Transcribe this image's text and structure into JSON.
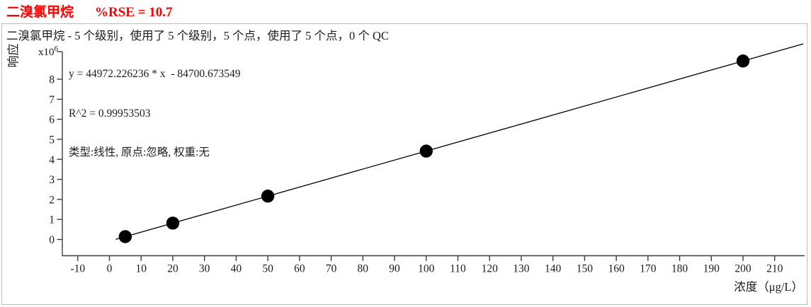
{
  "header": {
    "compound": "二溴氯甲烷",
    "rse": "%RSE = 10.7",
    "color": "#ff0000"
  },
  "subtitle": "二溴氯甲烷 - 5 个级别，使用了 5 个级别，5 个点，使用了 5 个点，0 个 QC",
  "annotation": {
    "equation": "y = 44972.226236 * x  - 84700.673549",
    "r2": "R^2 = 0.99953503",
    "fit_info": "类型:线性, 原点:忽略, 权重:无"
  },
  "chart_data": {
    "type": "scatter",
    "title": "二溴氯甲烷  %RSE = 10.7",
    "xlabel": "浓度（μg/L）",
    "ylabel": "响应",
    "y_multiplier_base": "x10",
    "y_multiplier_exp": "6",
    "x_ticks": [
      -10,
      0,
      10,
      20,
      30,
      40,
      50,
      60,
      70,
      80,
      90,
      100,
      110,
      120,
      130,
      140,
      150,
      160,
      170,
      180,
      190,
      200,
      210
    ],
    "y_ticks": [
      0,
      1,
      2,
      3,
      4,
      5,
      6,
      7,
      8
    ],
    "xlim": [
      -14.9,
      219.5
    ],
    "ylim": [
      -830000,
      9380000
    ],
    "grid": false,
    "legend": false,
    "points": {
      "x": [
        5,
        20,
        50,
        100,
        200
      ],
      "y": [
        140160,
        814744,
        2163911,
        4412522,
        8909745
      ]
    },
    "fit": {
      "kind": "linear",
      "slope": 44972.226236,
      "intercept": -84700.673549,
      "r2": 0.99953503,
      "line_x_range": [
        2,
        219
      ]
    },
    "colors": {
      "point": "#000000",
      "line": "#000000",
      "axis": "#3c3c3c",
      "tick_label": "#1a1a1a"
    }
  }
}
